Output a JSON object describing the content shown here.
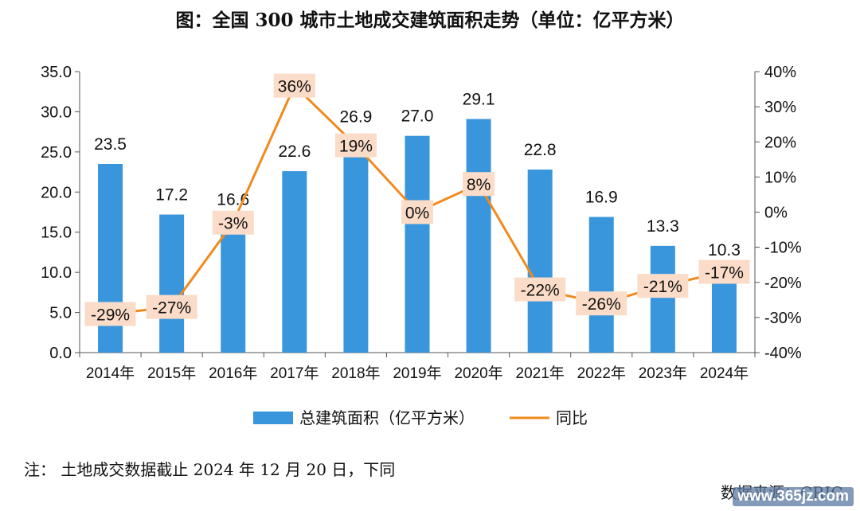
{
  "page": {
    "title": "图：全国 300 城市土地成交建筑面积走势（单位：亿平方米）",
    "note": "注： 土地成交数据截止 2024 年 12 月 20 日，下同",
    "source": "数据来源：CRIC",
    "watermark": "www.365jz.com"
  },
  "colors": {
    "bar": "#3a96dc",
    "line": "#f08a1c",
    "label_bg": "#fbdcc8",
    "axis": "#555555"
  },
  "chart_data": {
    "type": "bar",
    "categories": [
      "2014年",
      "2015年",
      "2016年",
      "2017年",
      "2018年",
      "2019年",
      "2020年",
      "2021年",
      "2022年",
      "2023年",
      "2024年"
    ],
    "series": [
      {
        "name": "总建筑面积（亿平方米）",
        "type": "bar",
        "axis": "left",
        "values": [
          23.5,
          17.2,
          16.6,
          22.6,
          26.9,
          27.0,
          29.1,
          22.8,
          16.9,
          13.3,
          10.3
        ],
        "labels": [
          "23.5",
          "17.2",
          "16.6",
          "22.6",
          "26.9",
          "27.0",
          "29.1",
          "22.8",
          "16.9",
          "13.3",
          "10.3"
        ]
      },
      {
        "name": "同比",
        "type": "line",
        "axis": "right",
        "values": [
          -29,
          -27,
          -3,
          36,
          19,
          0,
          8,
          -22,
          -26,
          -21,
          -17
        ],
        "labels": [
          "-29%",
          "-27%",
          "-3%",
          "36%",
          "19%",
          "0%",
          "8%",
          "-22%",
          "-26%",
          "-21%",
          "-17%"
        ]
      }
    ],
    "ylim_left": [
      0,
      35
    ],
    "yticks_left": [
      "0.0",
      "5.0",
      "10.0",
      "15.0",
      "20.0",
      "25.0",
      "30.0",
      "35.0"
    ],
    "ylim_right": [
      -40,
      40
    ],
    "yticks_right": [
      "-40%",
      "-30%",
      "-20%",
      "-10%",
      "0%",
      "10%",
      "20%",
      "30%",
      "40%"
    ],
    "legend_position": "bottom",
    "grid": false
  }
}
